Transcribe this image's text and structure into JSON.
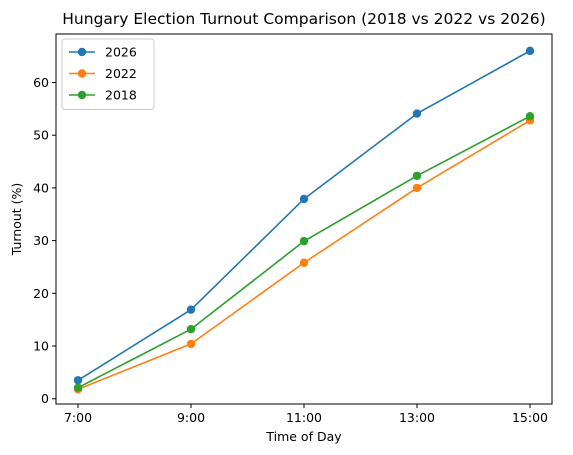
{
  "chart_data": {
    "type": "line",
    "title": "Hungary Election Turnout Comparison (2018 vs 2022 vs 2026)",
    "xlabel": "Time of Day",
    "ylabel": "Turnout (%)",
    "categories": [
      "7:00",
      "9:00",
      "11:00",
      "13:00",
      "15:00"
    ],
    "ylim": [
      -1.0,
      69.2
    ],
    "yticks": [
      0,
      10,
      20,
      30,
      40,
      50,
      60
    ],
    "grid": false,
    "legend": "top-left",
    "markers": true,
    "series": [
      {
        "name": "2026",
        "color": "#1f77b4",
        "values": [
          3.5,
          16.9,
          37.9,
          54.1,
          66.0
        ]
      },
      {
        "name": "2022",
        "color": "#ff7f0e",
        "values": [
          1.8,
          10.4,
          25.8,
          40.0,
          52.8
        ]
      },
      {
        "name": "2018",
        "color": "#2ca02c",
        "values": [
          2.1,
          13.2,
          29.9,
          42.3,
          53.6
        ]
      }
    ]
  }
}
